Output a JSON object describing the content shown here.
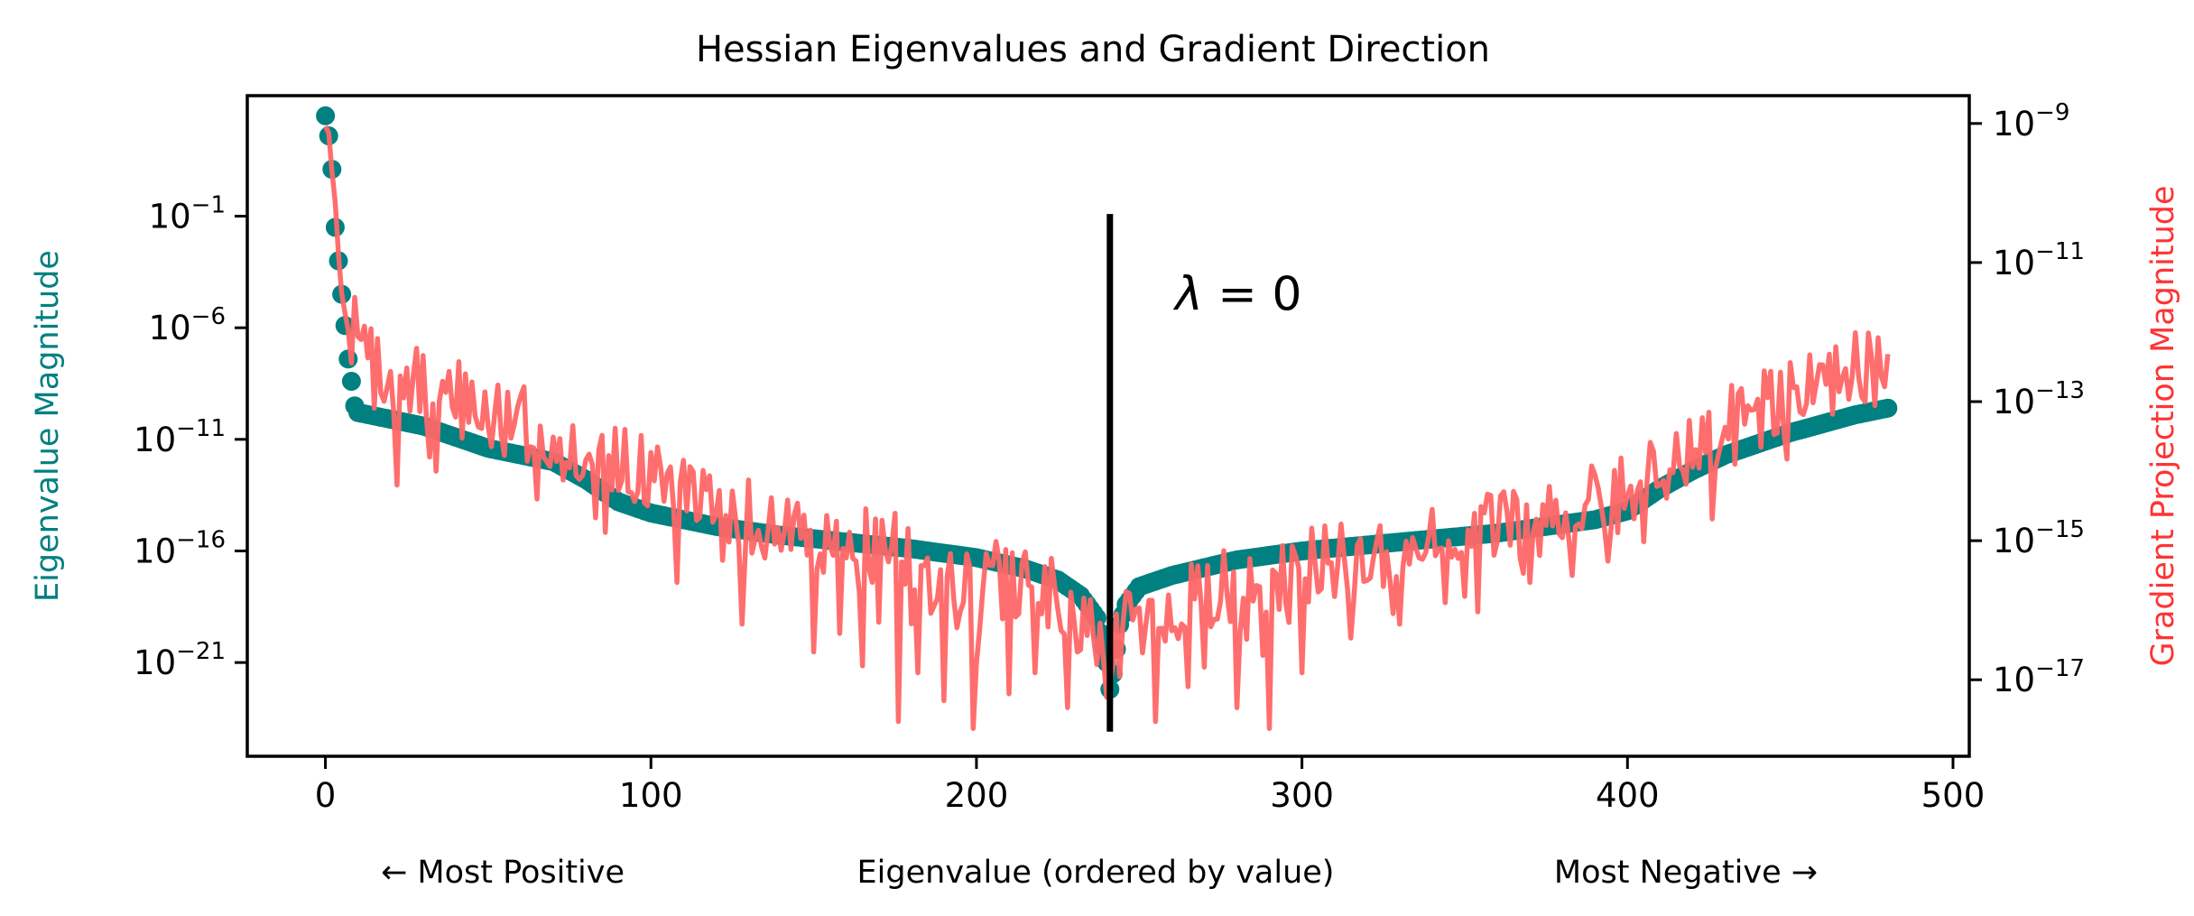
{
  "chart_data": {
    "type": "scatter",
    "title": "Hessian Eigenvalues and Gradient Direction",
    "xlabel": "Eigenvalue (ordered by value)",
    "xlabel_left": "← Most Positive",
    "xlabel_right": "Most Negative →",
    "ylabel_left": "Eigenvalue Magnitude",
    "ylabel_right": "Gradient Projection Magnitude",
    "xlim": [
      -24,
      505
    ],
    "ylim_left_log10": [
      -25.2,
      4.4
    ],
    "ylim_right_log10": [
      -18.1,
      -8.6
    ],
    "x_ticks": [
      0,
      100,
      200,
      300,
      400,
      500
    ],
    "x_tick_labels": [
      "0",
      "100",
      "200",
      "300",
      "400",
      "500"
    ],
    "y_left_ticks": [
      {
        "base": "10",
        "exp": "−1",
        "log": -1
      },
      {
        "base": "10",
        "exp": "−6",
        "log": -6
      },
      {
        "base": "10",
        "exp": "−11",
        "log": -11
      },
      {
        "base": "10",
        "exp": "−16",
        "log": -16
      },
      {
        "base": "10",
        "exp": "−21",
        "log": -21
      }
    ],
    "y_right_ticks": [
      {
        "base": "10",
        "exp": "−9",
        "log": -9
      },
      {
        "base": "10",
        "exp": "−11",
        "log": -11
      },
      {
        "base": "10",
        "exp": "−13",
        "log": -13
      },
      {
        "base": "10",
        "exp": "−15",
        "log": -15
      },
      {
        "base": "10",
        "exp": "−17",
        "log": -17
      }
    ],
    "annotation": {
      "text_var": "λ",
      "text_rest": " = 0",
      "x": 261,
      "ylog": -5.2
    },
    "zero_line": {
      "x": 241,
      "ylog_top": -0.9,
      "ylog_bottom": -24.1
    },
    "series": [
      {
        "name": "Eigenvalue Magnitude",
        "axis": "left",
        "marker": "circle",
        "color": "#008080",
        "n_points": 481,
        "anchors_x_log10": [
          [
            0,
            3.5
          ],
          [
            1,
            2.6
          ],
          [
            2,
            1.1
          ],
          [
            3,
            -1.5
          ],
          [
            4,
            -3.0
          ],
          [
            5,
            -4.5
          ],
          [
            6,
            -5.9
          ],
          [
            7,
            -7.4
          ],
          [
            8,
            -8.4
          ],
          [
            9,
            -9.5
          ],
          [
            10,
            -9.8
          ],
          [
            20,
            -10.1
          ],
          [
            30,
            -10.4
          ],
          [
            40,
            -10.9
          ],
          [
            50,
            -11.4
          ],
          [
            60,
            -11.7
          ],
          [
            70,
            -12.0
          ],
          [
            80,
            -12.8
          ],
          [
            90,
            -13.8
          ],
          [
            100,
            -14.3
          ],
          [
            110,
            -14.6
          ],
          [
            120,
            -14.9
          ],
          [
            140,
            -15.3
          ],
          [
            160,
            -15.6
          ],
          [
            180,
            -15.9
          ],
          [
            200,
            -16.3
          ],
          [
            215,
            -16.8
          ],
          [
            225,
            -17.3
          ],
          [
            232,
            -18.0
          ],
          [
            237,
            -19.0
          ],
          [
            240,
            -21.0
          ],
          [
            241,
            -22.2
          ],
          [
            242,
            -21.5
          ],
          [
            244,
            -19.3
          ],
          [
            246,
            -18.4
          ],
          [
            250,
            -17.6
          ],
          [
            260,
            -17.1
          ],
          [
            280,
            -16.4
          ],
          [
            300,
            -16.0
          ],
          [
            330,
            -15.6
          ],
          [
            360,
            -15.2
          ],
          [
            390,
            -14.6
          ],
          [
            400,
            -14.2
          ],
          [
            410,
            -13.2
          ],
          [
            420,
            -12.4
          ],
          [
            430,
            -11.7
          ],
          [
            440,
            -11.2
          ],
          [
            450,
            -10.7
          ],
          [
            460,
            -10.3
          ],
          [
            470,
            -9.9
          ],
          [
            480,
            -9.6
          ]
        ]
      },
      {
        "name": "Gradient Projection Magnitude",
        "axis": "right",
        "marker": "line",
        "color": "#ff6666",
        "n_points": 481,
        "seed": 7,
        "anchors_x_log10": [
          [
            0,
            -9.0
          ],
          [
            1,
            -9.2
          ],
          [
            2,
            -9.7
          ],
          [
            3,
            -10.2
          ],
          [
            4,
            -10.8
          ],
          [
            5,
            -11.5
          ],
          [
            7,
            -11.9
          ],
          [
            10,
            -12.1
          ],
          [
            20,
            -12.7
          ],
          [
            40,
            -12.9
          ],
          [
            60,
            -13.3
          ],
          [
            80,
            -13.7
          ],
          [
            100,
            -14.0
          ],
          [
            120,
            -14.5
          ],
          [
            140,
            -14.8
          ],
          [
            160,
            -15.0
          ],
          [
            180,
            -15.2
          ],
          [
            200,
            -15.5
          ],
          [
            220,
            -15.7
          ],
          [
            235,
            -16.2
          ],
          [
            241,
            -16.6
          ],
          [
            246,
            -16.2
          ],
          [
            260,
            -15.9
          ],
          [
            280,
            -15.6
          ],
          [
            300,
            -15.4
          ],
          [
            320,
            -15.2
          ],
          [
            340,
            -15.0
          ],
          [
            360,
            -14.8
          ],
          [
            380,
            -14.5
          ],
          [
            400,
            -14.1
          ],
          [
            420,
            -13.6
          ],
          [
            440,
            -13.1
          ],
          [
            460,
            -12.7
          ],
          [
            480,
            -12.4
          ]
        ],
        "dips_x_log10": [
          [
            22,
            -14.2
          ],
          [
            34,
            -14.0
          ],
          [
            65,
            -14.4
          ],
          [
            108,
            -15.6
          ],
          [
            128,
            -16.2
          ],
          [
            150,
            -16.6
          ],
          [
            165,
            -16.8
          ],
          [
            176,
            -17.6
          ],
          [
            182,
            -16.9
          ],
          [
            190,
            -17.3
          ],
          [
            199,
            -17.7
          ],
          [
            210,
            -17.2
          ],
          [
            218,
            -16.9
          ],
          [
            228,
            -17.4
          ],
          [
            255,
            -17.6
          ],
          [
            265,
            -17.1
          ],
          [
            280,
            -17.4
          ],
          [
            290,
            -17.7
          ],
          [
            300,
            -16.9
          ],
          [
            315,
            -16.4
          ],
          [
            330,
            -16.2
          ],
          [
            350,
            -15.8
          ],
          [
            370,
            -15.6
          ],
          [
            395,
            -14.8
          ],
          [
            410,
            -14.2
          ]
        ]
      }
    ]
  }
}
